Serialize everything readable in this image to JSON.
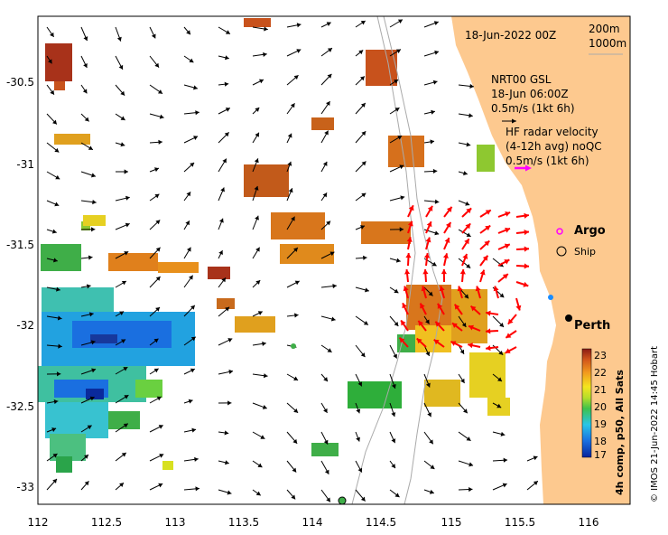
{
  "map": {
    "date_label": "18-Jun-2022 00Z",
    "depth_200": "200m",
    "depth_1000": "1000m",
    "nrt_title": "NRT00 GSL",
    "nrt_date": "18-Jun 06:00Z",
    "nrt_scale": "0.5m/s (1kt 6h)",
    "hf_title": "HF radar velocity",
    "hf_avg": "(4-12h avg) noQC",
    "hf_scale": "0.5m/s (1kt 6h)",
    "argo_label": "Argo",
    "ship_label": "Ship",
    "city_label": "Perth",
    "colorbar_title": "4h comp, p50, All Sats",
    "credit": "© IMOS 21-Jun-2022 14:45 Hobart"
  },
  "axes": {
    "x_ticks": [
      "112",
      "112.5",
      "113",
      "113.5",
      "114",
      "114.5",
      "115",
      "115.5",
      "116"
    ],
    "y_ticks": [
      "-30.5",
      "-31",
      "-31.5",
      "-32",
      "-32.5",
      "-33"
    ],
    "xlim": [
      112.0,
      116.0
    ],
    "ylim": [
      -33.1,
      -30.0
    ]
  },
  "colorbar": {
    "ticks": [
      "23",
      "22",
      "21",
      "20",
      "19",
      "18",
      "17"
    ],
    "range": [
      17,
      23
    ]
  },
  "colors": {
    "land": "#fdc98f",
    "hf_arrow": "#ff0000",
    "argo": "#ff00ff"
  }
}
